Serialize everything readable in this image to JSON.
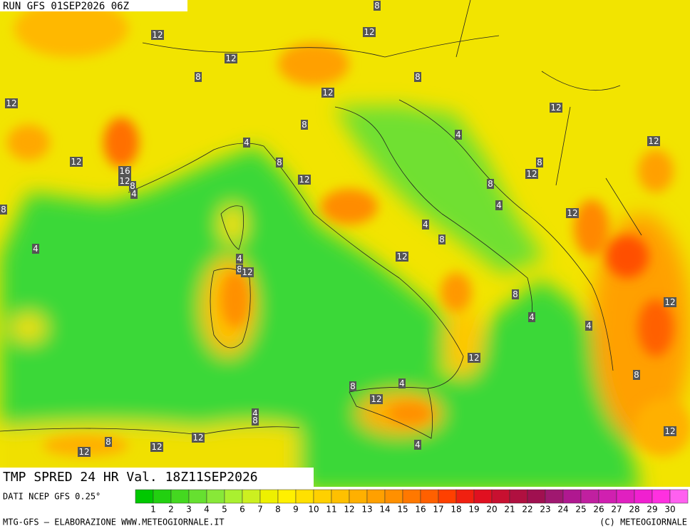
{
  "header": {
    "run": "RUN GFS 01SEP2026 06Z"
  },
  "title": "TMP SPRED 24 HR Val. 18Z11SEP2026",
  "source": "DATI NCEP GFS 0.25°",
  "footer": {
    "left": "MTG-GFS — ELABORAZIONE WWW.METEOGIORNALE.IT",
    "right": "(C) METEOGIORNALE"
  },
  "colorbar": {
    "labels": [
      "1",
      "2",
      "3",
      "4",
      "5",
      "6",
      "7",
      "8",
      "9",
      "10",
      "11",
      "12",
      "13",
      "14",
      "15",
      "16",
      "17",
      "18",
      "19",
      "20",
      "21",
      "22",
      "23",
      "24",
      "25",
      "26",
      "27",
      "28",
      "29",
      "30"
    ],
    "colors": [
      "#00c800",
      "#22d010",
      "#44d820",
      "#66e030",
      "#88e838",
      "#aaf030",
      "#ccf020",
      "#eef000",
      "#fff000",
      "#ffe000",
      "#ffd000",
      "#ffc000",
      "#ffb000",
      "#ffa000",
      "#ff9000",
      "#ff7800",
      "#ff6000",
      "#ff4000",
      "#f02010",
      "#e01020",
      "#c81030",
      "#b01040",
      "#a01050",
      "#a01870",
      "#b01890",
      "#c020a0",
      "#d020b0",
      "#e020c0",
      "#f020d0",
      "#ff30e0",
      "#ff60f0"
    ]
  },
  "contour_labels": [
    "12",
    "12",
    "8",
    "12",
    "8",
    "8",
    "12",
    "12",
    "12",
    "8",
    "4",
    "4",
    "12",
    "12",
    "8",
    "16",
    "12",
    "8",
    "4",
    "12",
    "12",
    "8",
    "8",
    "4",
    "8",
    "12",
    "4",
    "8",
    "4",
    "12",
    "4",
    "8",
    "12",
    "8",
    "4",
    "12",
    "4",
    "12",
    "8",
    "4",
    "8",
    "12",
    "4",
    "8",
    "12",
    "8",
    "12",
    "12",
    "4",
    "12"
  ]
}
